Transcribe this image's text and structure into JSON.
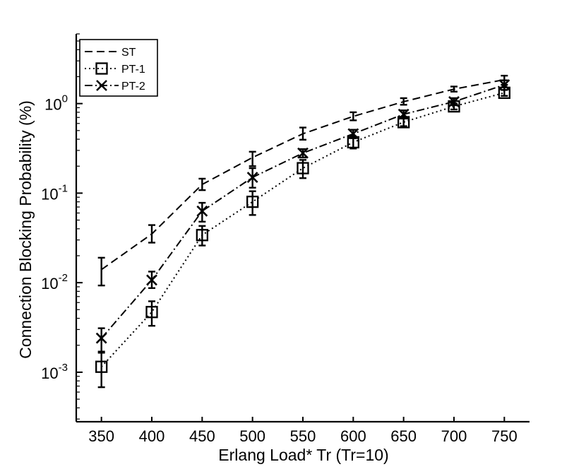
{
  "chart_data": {
    "type": "line",
    "xlabel": "Erlang Load* Tr (Tr=10)",
    "ylabel": "Connection Blocking Probability (%)",
    "x": [
      350,
      400,
      450,
      500,
      550,
      600,
      650,
      700,
      750
    ],
    "xticks": [
      "350",
      "400",
      "450",
      "500",
      "550",
      "600",
      "650",
      "700",
      "750"
    ],
    "xlim": [
      325,
      775
    ],
    "ylim": [
      0.00028,
      6
    ],
    "yscale": "log",
    "yticks": [
      {
        "value": 0.001,
        "base": "10",
        "exp": "-3"
      },
      {
        "value": 0.01,
        "base": "10",
        "exp": "-2"
      },
      {
        "value": 0.1,
        "base": "10",
        "exp": "-1"
      },
      {
        "value": 1,
        "base": "10",
        "exp": "0"
      }
    ],
    "grid": false,
    "legend": "top-left",
    "series": [
      {
        "name": "ST",
        "line_style": "dashed",
        "marker": "none",
        "values": [
          0.014,
          0.035,
          0.125,
          0.25,
          0.46,
          0.72,
          1.05,
          1.45,
          1.85
        ],
        "err_low": [
          0.0093,
          0.028,
          0.108,
          0.2,
          0.395,
          0.65,
          0.97,
          1.36,
          1.62
        ],
        "err_high": [
          0.019,
          0.044,
          0.145,
          0.29,
          0.54,
          0.8,
          1.15,
          1.55,
          2.05
        ]
      },
      {
        "name": "PT-1",
        "line_style": "dotted",
        "marker": "square",
        "values": [
          0.00115,
          0.0047,
          0.034,
          0.08,
          0.19,
          0.37,
          0.62,
          0.93,
          1.32
        ],
        "err_low": [
          0.00068,
          0.0033,
          0.026,
          0.057,
          0.147,
          0.315,
          0.56,
          0.86,
          1.22
        ],
        "err_high": [
          0.00165,
          0.0062,
          0.043,
          0.105,
          0.235,
          0.43,
          0.69,
          1.0,
          1.42
        ]
      },
      {
        "name": "PT-2",
        "line_style": "dash-dot",
        "marker": "x",
        "values": [
          0.0024,
          0.0107,
          0.063,
          0.15,
          0.28,
          0.46,
          0.76,
          1.05,
          1.62
        ],
        "err_low": [
          0.0017,
          0.0087,
          0.048,
          0.115,
          0.25,
          0.41,
          0.68,
          0.96,
          1.42
        ],
        "err_high": [
          0.0031,
          0.0133,
          0.078,
          0.19,
          0.31,
          0.51,
          0.84,
          1.15,
          1.82
        ]
      }
    ]
  }
}
